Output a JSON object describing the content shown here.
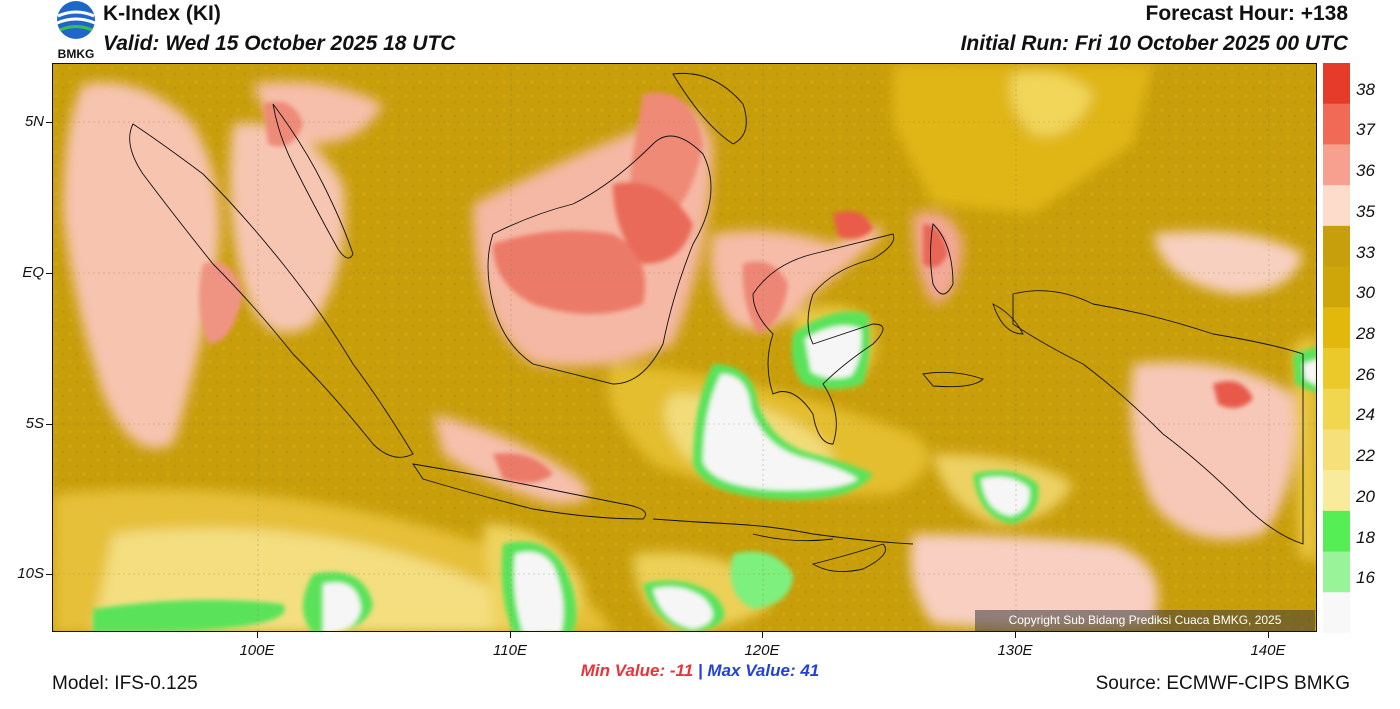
{
  "header": {
    "title": "K-Index (KI)",
    "valid": "Valid: Wed 15 October 2025 18 UTC",
    "forecast_hour": "Forecast Hour: +138",
    "initial_run": "Initial Run: Fri 10 October 2025 00 UTC",
    "logo_text": "BMKG"
  },
  "map": {
    "lat_labels": [
      {
        "label": "5N",
        "lat": 5
      },
      {
        "label": "EQ",
        "lat": 0
      },
      {
        "label": "5S",
        "lat": -5
      },
      {
        "label": "10S",
        "lat": -10
      }
    ],
    "lon_labels": [
      {
        "label": "100E",
        "lon": 100
      },
      {
        "label": "110E",
        "lon": 110
      },
      {
        "label": "120E",
        "lon": 120
      },
      {
        "label": "130E",
        "lon": 130
      },
      {
        "label": "140E",
        "lon": 140
      }
    ],
    "copyright": "Copyright Sub Bidang Prediksi Cuaca BMKG, 2025"
  },
  "colorbar": {
    "labels": [
      "38",
      "37",
      "36",
      "35",
      "33",
      "30",
      "28",
      "26",
      "24",
      "22",
      "20",
      "18",
      "16"
    ],
    "colors": [
      "#e63a2a",
      "#f06a55",
      "#f7a090",
      "#fddccc",
      "#c79e0c",
      "#cfa60a",
      "#e2b80d",
      "#ecc92a",
      "#f1d650",
      "#f5e07a",
      "#f8eb9c",
      "#55ee55",
      "#99f499",
      "#f8f8f8"
    ]
  },
  "footer": {
    "min_label": "Min Value: -11",
    "separator": "|",
    "max_label": "Max Value:  41",
    "model": "Model: IFS-0.125",
    "source": "Source: ECMWF-CIPS BMKG"
  }
}
